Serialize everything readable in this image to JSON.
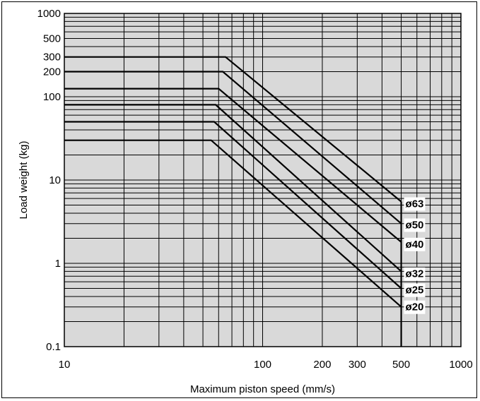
{
  "chart_data": {
    "type": "line",
    "xlabel": "Maximum piston speed (mm/s)",
    "ylabel": "Load weight (kg)",
    "xscale": "log",
    "yscale": "log",
    "xlim": [
      10,
      1000
    ],
    "ylim": [
      0.1,
      1000
    ],
    "grid": true,
    "background": "#d9d9d9",
    "x_ticks": [
      {
        "value": 10,
        "label": "10"
      },
      {
        "value": 100,
        "label": "100"
      },
      {
        "value": 200,
        "label": "200"
      },
      {
        "value": 300,
        "label": "300"
      },
      {
        "value": 500,
        "label": "500"
      },
      {
        "value": 1000,
        "label": "1000"
      }
    ],
    "y_ticks": [
      {
        "value": 0.1,
        "label": "0.1"
      },
      {
        "value": 1,
        "label": "1"
      },
      {
        "value": 10,
        "label": "10"
      },
      {
        "value": 100,
        "label": "100"
      },
      {
        "value": 200,
        "label": "200"
      },
      {
        "value": 300,
        "label": "300"
      },
      {
        "value": 500,
        "label": "500"
      },
      {
        "value": 1000,
        "label": "1000"
      }
    ],
    "series": [
      {
        "name": "ø63",
        "x": [
          10,
          65,
          500
        ],
        "y": [
          300,
          300,
          5.5
        ],
        "label_y": 5.2
      },
      {
        "name": "ø50",
        "x": [
          10,
          63,
          500
        ],
        "y": [
          200,
          200,
          3.0
        ],
        "label_y": 2.9
      },
      {
        "name": "ø40",
        "x": [
          10,
          60,
          500
        ],
        "y": [
          125,
          125,
          1.8
        ],
        "label_y": 1.7
      },
      {
        "name": "ø32",
        "x": [
          10,
          58,
          500
        ],
        "y": [
          80,
          80,
          0.8
        ],
        "label_y": 0.75
      },
      {
        "name": "ø25",
        "x": [
          10,
          57,
          500
        ],
        "y": [
          50,
          50,
          0.5
        ],
        "label_y": 0.48
      },
      {
        "name": "ø20",
        "x": [
          10,
          55,
          500
        ],
        "y": [
          30,
          30,
          0.3
        ],
        "label_y": 0.3
      }
    ]
  }
}
